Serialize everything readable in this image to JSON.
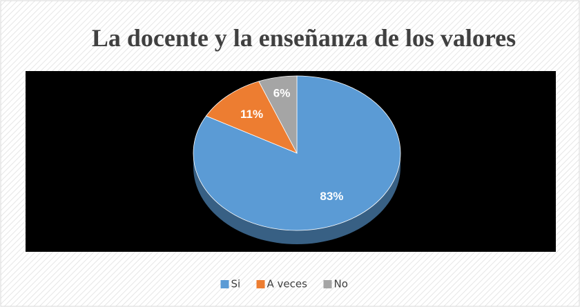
{
  "chart_data": {
    "type": "pie",
    "title": "La docente y la enseñanza de los valores",
    "categories": [
      "Si",
      "A veces",
      "No"
    ],
    "values": [
      83,
      11,
      6
    ],
    "value_labels": [
      "83%",
      "11%",
      "6%"
    ],
    "colors": [
      "#5b9bd5",
      "#ed7d31",
      "#a5a5a5"
    ],
    "legend": "bottom"
  }
}
